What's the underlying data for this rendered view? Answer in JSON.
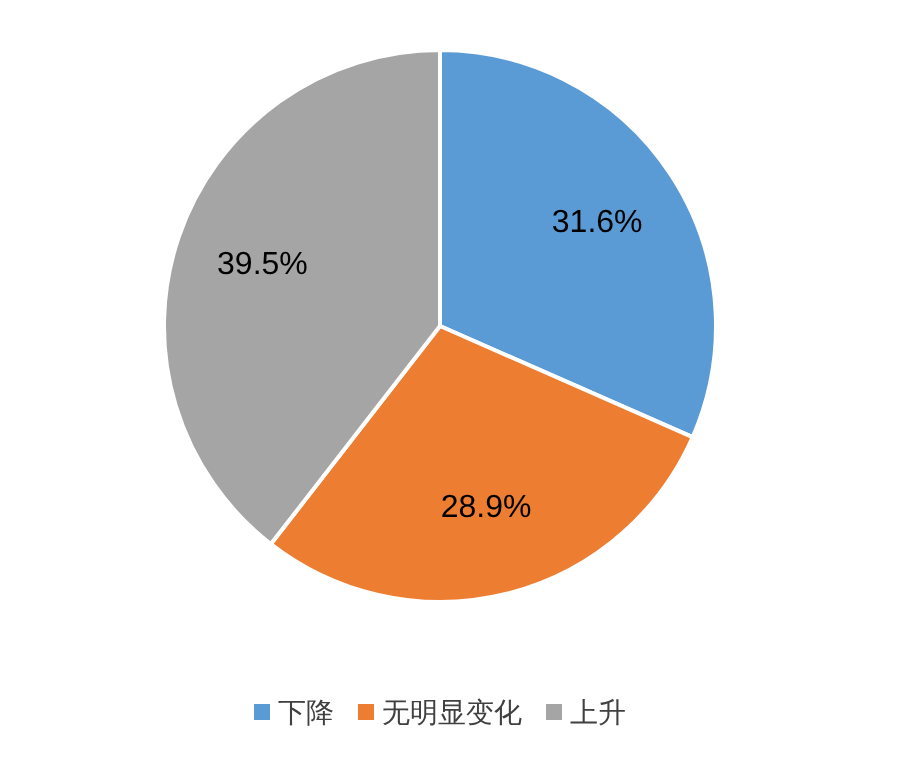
{
  "chart_data": {
    "type": "pie",
    "categories": [
      "下降",
      "无明显变化",
      "上升"
    ],
    "values": [
      31.6,
      28.9,
      39.5
    ],
    "value_labels": [
      "31.6%",
      "28.9%",
      "39.5%"
    ],
    "colors": [
      "#5b9bd5",
      "#ed7d31",
      "#a5a5a5"
    ],
    "legend": "bottom"
  }
}
